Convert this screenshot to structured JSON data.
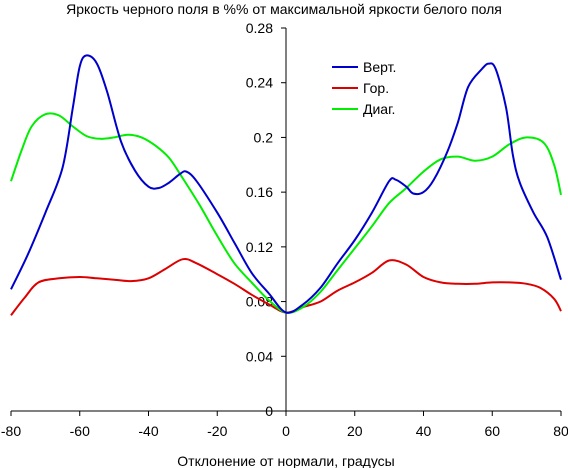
{
  "chart_data": {
    "type": "line",
    "title": "Яркость черного поля в %% от максимальной яркости белого поля",
    "xlabel": "Отклонение от нормали, градусы",
    "ylabel": "",
    "xlim": [
      -80,
      80
    ],
    "ylim": [
      0,
      0.28
    ],
    "x_ticks": [
      -80,
      -60,
      -40,
      -20,
      0,
      20,
      40,
      60,
      80
    ],
    "y_ticks": [
      0,
      0.04,
      0.08,
      0.12,
      0.16,
      0.2,
      0.24,
      0.28
    ],
    "x_tick_labels": [
      "-80",
      "-60",
      "-40",
      "-20",
      "0",
      "20",
      "40",
      "60",
      "80"
    ],
    "y_tick_labels": [
      "0",
      "0.04",
      "0.08",
      "0.12",
      "0.16",
      "0.2",
      "0.24",
      "0.28"
    ],
    "grid": false,
    "legend_position": "top-right",
    "series": [
      {
        "name": "Верт.",
        "color": "#0000cc",
        "points": [
          [
            -80,
            0.089
          ],
          [
            -75,
            0.115
          ],
          [
            -70,
            0.145
          ],
          [
            -65,
            0.178
          ],
          [
            -62,
            0.222
          ],
          [
            -60,
            0.252
          ],
          [
            -58,
            0.26
          ],
          [
            -55,
            0.254
          ],
          [
            -52,
            0.233
          ],
          [
            -48,
            0.197
          ],
          [
            -44,
            0.176
          ],
          [
            -40,
            0.164
          ],
          [
            -37,
            0.163
          ],
          [
            -34,
            0.167
          ],
          [
            -31,
            0.173
          ],
          [
            -29,
            0.175
          ],
          [
            -26,
            0.168
          ],
          [
            -20,
            0.145
          ],
          [
            -15,
            0.123
          ],
          [
            -10,
            0.101
          ],
          [
            -5,
            0.086
          ],
          [
            0,
            0.072
          ],
          [
            5,
            0.078
          ],
          [
            10,
            0.09
          ],
          [
            15,
            0.108
          ],
          [
            20,
            0.125
          ],
          [
            25,
            0.145
          ],
          [
            30,
            0.168
          ],
          [
            32,
            0.169
          ],
          [
            35,
            0.164
          ],
          [
            37,
            0.159
          ],
          [
            40,
            0.16
          ],
          [
            43,
            0.169
          ],
          [
            47,
            0.19
          ],
          [
            50,
            0.211
          ],
          [
            53,
            0.237
          ],
          [
            57,
            0.25
          ],
          [
            59,
            0.254
          ],
          [
            61,
            0.25
          ],
          [
            64,
            0.222
          ],
          [
            66,
            0.187
          ],
          [
            68,
            0.167
          ],
          [
            72,
            0.145
          ],
          [
            76,
            0.127
          ],
          [
            80,
            0.096
          ]
        ]
      },
      {
        "name": "Гор.",
        "color": "#dd0000",
        "points": [
          [
            -80,
            0.07
          ],
          [
            -76,
            0.083
          ],
          [
            -72,
            0.094
          ],
          [
            -66,
            0.097
          ],
          [
            -60,
            0.098
          ],
          [
            -55,
            0.097
          ],
          [
            -50,
            0.096
          ],
          [
            -45,
            0.095
          ],
          [
            -40,
            0.097
          ],
          [
            -35,
            0.104
          ],
          [
            -30,
            0.111
          ],
          [
            -26,
            0.108
          ],
          [
            -20,
            0.1
          ],
          [
            -15,
            0.093
          ],
          [
            -10,
            0.085
          ],
          [
            -5,
            0.078
          ],
          [
            0,
            0.072
          ],
          [
            5,
            0.076
          ],
          [
            10,
            0.08
          ],
          [
            15,
            0.088
          ],
          [
            20,
            0.094
          ],
          [
            25,
            0.101
          ],
          [
            30,
            0.11
          ],
          [
            35,
            0.107
          ],
          [
            40,
            0.098
          ],
          [
            45,
            0.094
          ],
          [
            50,
            0.093
          ],
          [
            55,
            0.093
          ],
          [
            60,
            0.094
          ],
          [
            65,
            0.094
          ],
          [
            70,
            0.093
          ],
          [
            74,
            0.09
          ],
          [
            78,
            0.082
          ],
          [
            80,
            0.073
          ]
        ]
      },
      {
        "name": "Диаг.",
        "color": "#00ee00",
        "points": [
          [
            -80,
            0.168
          ],
          [
            -77,
            0.19
          ],
          [
            -74,
            0.208
          ],
          [
            -70,
            0.217
          ],
          [
            -66,
            0.216
          ],
          [
            -62,
            0.208
          ],
          [
            -58,
            0.201
          ],
          [
            -54,
            0.199
          ],
          [
            -50,
            0.2
          ],
          [
            -46,
            0.202
          ],
          [
            -42,
            0.2
          ],
          [
            -38,
            0.194
          ],
          [
            -34,
            0.185
          ],
          [
            -30,
            0.17
          ],
          [
            -25,
            0.15
          ],
          [
            -20,
            0.128
          ],
          [
            -15,
            0.108
          ],
          [
            -10,
            0.094
          ],
          [
            -5,
            0.081
          ],
          [
            0,
            0.072
          ],
          [
            5,
            0.076
          ],
          [
            10,
            0.087
          ],
          [
            15,
            0.103
          ],
          [
            20,
            0.119
          ],
          [
            25,
            0.135
          ],
          [
            30,
            0.152
          ],
          [
            35,
            0.163
          ],
          [
            40,
            0.175
          ],
          [
            45,
            0.184
          ],
          [
            50,
            0.186
          ],
          [
            55,
            0.183
          ],
          [
            60,
            0.186
          ],
          [
            65,
            0.195
          ],
          [
            70,
            0.2
          ],
          [
            75,
            0.196
          ],
          [
            78,
            0.18
          ],
          [
            80,
            0.158
          ]
        ]
      }
    ]
  }
}
